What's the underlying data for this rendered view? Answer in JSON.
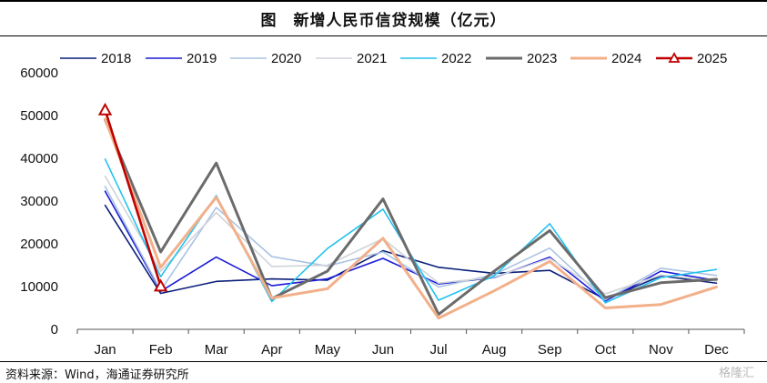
{
  "title": "图　新增人民币信贷规模（亿元）",
  "source": "资料来源：Wind，海通证券研究所",
  "watermark": "格隆汇",
  "chart_data": {
    "type": "line",
    "title": "新增人民币信贷规模（亿元）",
    "xlabel": "",
    "ylabel": "",
    "categories": [
      "Jan",
      "Feb",
      "Mar",
      "Apr",
      "May",
      "Jun",
      "Jul",
      "Aug",
      "Sep",
      "Oct",
      "Nov",
      "Dec"
    ],
    "ylim": [
      0,
      60000
    ],
    "yticks": [
      0,
      10000,
      20000,
      30000,
      40000,
      50000,
      60000
    ],
    "grid": false,
    "legend_position": "top",
    "series": [
      {
        "name": "2018",
        "color": "#0b1f7a",
        "width": 1.6,
        "values": [
          29000,
          8400,
          11200,
          11800,
          11500,
          18400,
          14500,
          13100,
          13800,
          7000,
          12500,
          10800
        ]
      },
      {
        "name": "2019",
        "color": "#1b1bd6",
        "width": 1.6,
        "values": [
          32300,
          8900,
          16900,
          10200,
          11800,
          16600,
          10600,
          12100,
          16900,
          6600,
          13600,
          11400
        ]
      },
      {
        "name": "2020",
        "color": "#a9c3e3",
        "width": 1.6,
        "values": [
          33400,
          9100,
          28500,
          17000,
          14800,
          18100,
          9900,
          12800,
          19000,
          6900,
          14300,
          12600
        ]
      },
      {
        "name": "2021",
        "color": "#cfd3d8",
        "width": 1.6,
        "values": [
          35800,
          13600,
          27300,
          14700,
          15000,
          21200,
          10800,
          12200,
          16600,
          8300,
          12700,
          11300
        ]
      },
      {
        "name": "2022",
        "color": "#22c2ee",
        "width": 1.6,
        "values": [
          39800,
          12300,
          31300,
          6500,
          18900,
          28100,
          6800,
          12500,
          24700,
          6200,
          12100,
          14000
        ]
      },
      {
        "name": "2023",
        "color": "#6b6b6b",
        "width": 3,
        "values": [
          49000,
          18100,
          38900,
          7200,
          13600,
          30500,
          3500,
          13600,
          23100,
          7400,
          10900,
          11700
        ]
      },
      {
        "name": "2024",
        "color": "#f2b08a",
        "width": 3,
        "values": [
          49200,
          14500,
          30900,
          7300,
          9500,
          21300,
          2600,
          9000,
          15900,
          5000,
          5800,
          9900
        ]
      },
      {
        "name": "2025",
        "color": "#c00000",
        "width": 2.6,
        "marker": "triangle",
        "values": [
          51300,
          10100,
          null,
          null,
          null,
          null,
          null,
          null,
          null,
          null,
          null,
          null
        ]
      }
    ]
  }
}
